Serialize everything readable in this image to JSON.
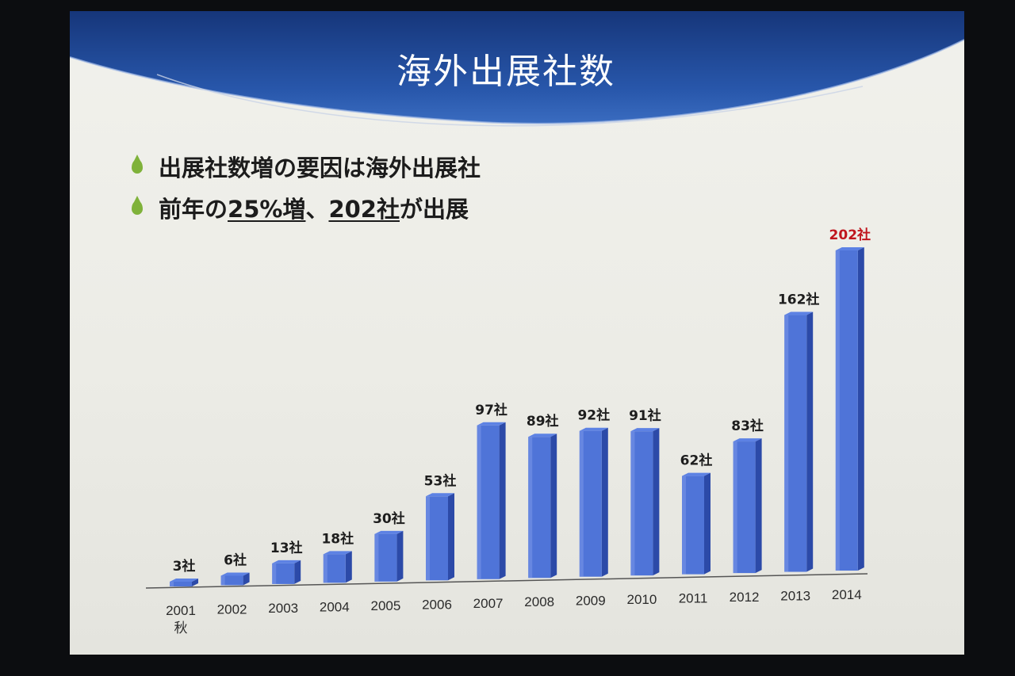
{
  "slide": {
    "title": "海外出展社数",
    "bullets": [
      {
        "pre": "出展社数増の要因は海外出展社",
        "u1": "",
        "mid": "",
        "u2": "",
        "post": ""
      },
      {
        "pre": "前年の",
        "u1": "25%増",
        "mid": "、",
        "u2": "202社",
        "post": "が出展"
      }
    ],
    "colors": {
      "header": "#1f4a9a",
      "bar": "#4f74d8",
      "bullet": "#7fb23a",
      "highlight_label": "#c0161d"
    }
  },
  "chart_data": {
    "type": "bar",
    "title": "",
    "categories": [
      "2001\n秋",
      "2002",
      "2003",
      "2004",
      "2005",
      "2006",
      "2007",
      "2008",
      "2009",
      "2010",
      "2011",
      "2012",
      "2013",
      "2014"
    ],
    "values": [
      3,
      6,
      13,
      18,
      30,
      53,
      97,
      89,
      92,
      91,
      62,
      83,
      162,
      202
    ],
    "labels": [
      "3社",
      "6社",
      "13社",
      "18社",
      "30社",
      "53社",
      "97社",
      "89社",
      "92社",
      "91社",
      "62社",
      "83社",
      "162社",
      "202社"
    ],
    "highlight_index": 13,
    "xlabel": "",
    "ylabel": "",
    "ylim": [
      0,
      210
    ],
    "grid": false,
    "style": "3d-bar"
  }
}
